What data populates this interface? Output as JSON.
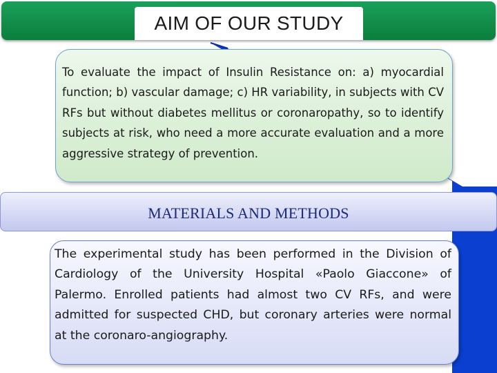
{
  "header": {
    "title": "AIM OF OUR STUDY"
  },
  "aim": {
    "text": "To evaluate the impact of Insulin Resistance on: a) myocardial function; b) vascular damage; c) HR variability, in subjects with CV RFs but without diabetes mellitus or coronaropathy, so to identify subjects at risk, who need a more accurate evaluation and a more aggressive strategy of prevention."
  },
  "methods": {
    "title": "MATERIALS AND METHODS",
    "text": "The experimental study has been performed in the Division of Cardiology of the University Hospital «Paolo Giaccone» of Palermo. Enrolled patients had almost two CV RFs, and were admitted for suspected CHD, but coronary arteries were normal at the coronaro-angiography."
  },
  "colors": {
    "header_green": "#0a7f3c",
    "arrow_blue": "#0a3fd0",
    "methods_title_blue": "#1a2a7a",
    "aim_box_fill": "#cfeac9",
    "methods_box_fill": "#d7dbf5"
  }
}
